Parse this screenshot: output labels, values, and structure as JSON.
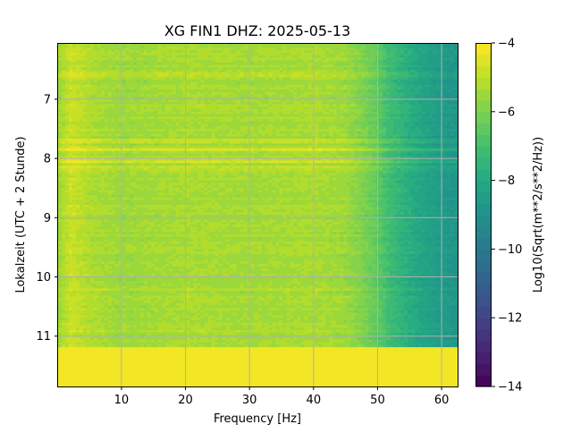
{
  "chart_data": {
    "type": "heatmap",
    "title": "XG FIN1  DHZ: 2025-05-13",
    "xlabel": "Frequency [Hz]",
    "ylabel": "Lokalzeit (UTC + 2 Stunde)",
    "xlim": [
      0.1,
      62.5
    ],
    "ylim": [
      11.85,
      6.05
    ],
    "x_ticks": [
      10,
      20,
      30,
      40,
      50,
      60
    ],
    "x_tick_labels": [
      "10",
      "20",
      "30",
      "40",
      "50",
      "60"
    ],
    "y_ticks": [
      7,
      8,
      9,
      10,
      11
    ],
    "y_tick_labels": [
      "7",
      "8",
      "9",
      "10",
      "11"
    ],
    "grid": true,
    "colormap": "viridis",
    "colorbar": {
      "label": "Log10(Sqrt(m**2/s**2/Hz))",
      "range": [
        -14,
        -4
      ],
      "ticks": [
        -4,
        -6,
        -8,
        -10,
        -12,
        -14
      ],
      "tick_labels": [
        "−4",
        "−6",
        "−8",
        "−10",
        "−12",
        "−14"
      ],
      "levels": 30
    },
    "spectral_profile": {
      "frequency_hz": [
        0.1,
        2,
        5,
        10,
        20,
        30,
        40,
        45,
        48,
        50,
        52,
        55,
        58,
        60,
        62.5
      ],
      "log10_amplitude": [
        -5.5,
        -4.8,
        -5.2,
        -5.5,
        -5.3,
        -5.4,
        -5.3,
        -5.5,
        -6.0,
        -6.5,
        -7.2,
        -7.8,
        -8.3,
        -8.6,
        -8.8
      ]
    },
    "row_offsets": [
      {
        "time": 6.6,
        "offset": 0.5
      },
      {
        "time": 7.1,
        "offset": 0.3
      },
      {
        "time": 7.7,
        "offset": 0.8
      },
      {
        "time": 7.85,
        "offset": 0.9
      },
      {
        "time": 8.05,
        "offset": 0.9
      },
      {
        "time": 8.15,
        "offset": 0.7
      },
      {
        "time": 9.1,
        "offset": 0.2
      },
      {
        "time": 10.2,
        "offset": 0.3
      },
      {
        "time": 10.9,
        "offset": 0.3
      }
    ],
    "no_data_after_time": 11.2,
    "no_data_value": -4
  }
}
